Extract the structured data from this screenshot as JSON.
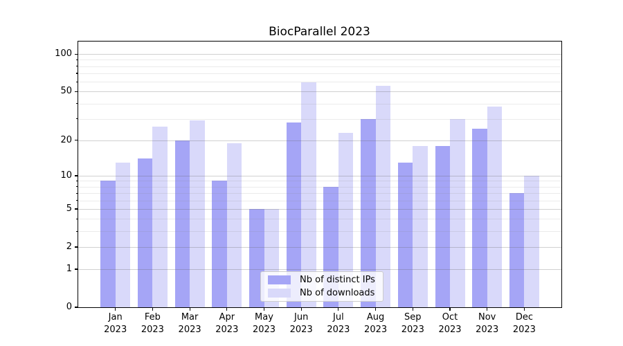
{
  "chart_data": {
    "type": "bar",
    "title": "BiocParallel 2023",
    "categories": [
      "Jan",
      "Feb",
      "Mar",
      "Apr",
      "May",
      "Jun",
      "Jul",
      "Aug",
      "Sep",
      "Oct",
      "Nov",
      "Dec"
    ],
    "year_label": "2023",
    "series": [
      {
        "name": "Nb of distinct IPs",
        "color": "#a5a5f6",
        "values": [
          9,
          14,
          20,
          9,
          5,
          28,
          8,
          30,
          13,
          18,
          25,
          7
        ]
      },
      {
        "name": "Nb of downloads",
        "color": "#d9d9fa",
        "values": [
          13,
          26,
          29,
          19,
          5,
          59,
          23,
          56,
          18,
          30,
          38,
          10
        ]
      }
    ],
    "yscale": "log1p",
    "ylim_top": 126,
    "yticks": [
      100,
      50,
      20,
      10,
      5,
      2,
      1,
      0
    ],
    "ytick_labels": [
      "100",
      "50",
      "20",
      "10",
      "5",
      "2",
      "1",
      "0"
    ],
    "minor_yticks": [
      3,
      4,
      6,
      7,
      8,
      9,
      30,
      40,
      60,
      70,
      80,
      90
    ],
    "xlabel": "",
    "ylabel": "",
    "grid": true,
    "legend_position": "lower center"
  }
}
